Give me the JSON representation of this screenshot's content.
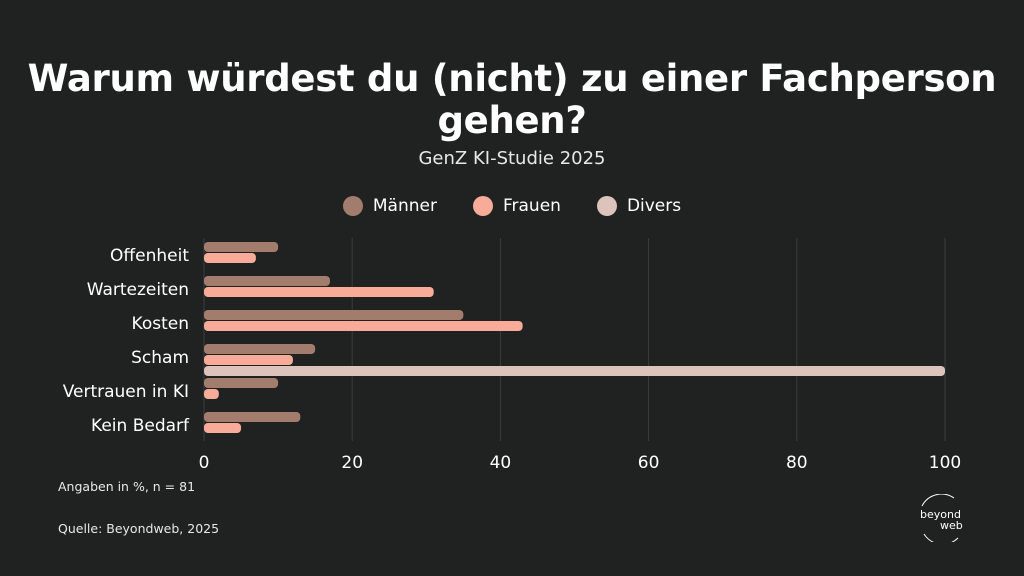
{
  "title": "Warum würdest du (nicht) zu einer Fachperson gehen?",
  "subtitle": "GenZ KI-Studie 2025",
  "note": "Angaben in %, n = 81",
  "source": "Quelle: Beyondweb, 2025",
  "logo": {
    "line1": "beyond",
    "line2": "web"
  },
  "colors": {
    "background": "#202222",
    "grid": "#3a3d3d"
  },
  "chart_data": {
    "type": "bar",
    "orientation": "horizontal",
    "categories": [
      "Offenheit",
      "Wartezeiten",
      "Kosten",
      "Scham",
      "Vertrauen in KI",
      "Kein Bedarf"
    ],
    "series": [
      {
        "name": "Männer",
        "color": "#a27d6e",
        "values": [
          10,
          17,
          35,
          15,
          10,
          13
        ]
      },
      {
        "name": "Frauen",
        "color": "#f9ab99",
        "values": [
          7,
          31,
          43,
          12,
          2,
          5
        ]
      },
      {
        "name": "Divers",
        "color": "#dcc3bb",
        "values": [
          0,
          0,
          0,
          100,
          0,
          0
        ]
      }
    ],
    "xlim": [
      0,
      100
    ],
    "xticks": [
      0,
      20,
      40,
      60,
      80,
      100
    ],
    "grid": true,
    "legend_position": "top"
  }
}
